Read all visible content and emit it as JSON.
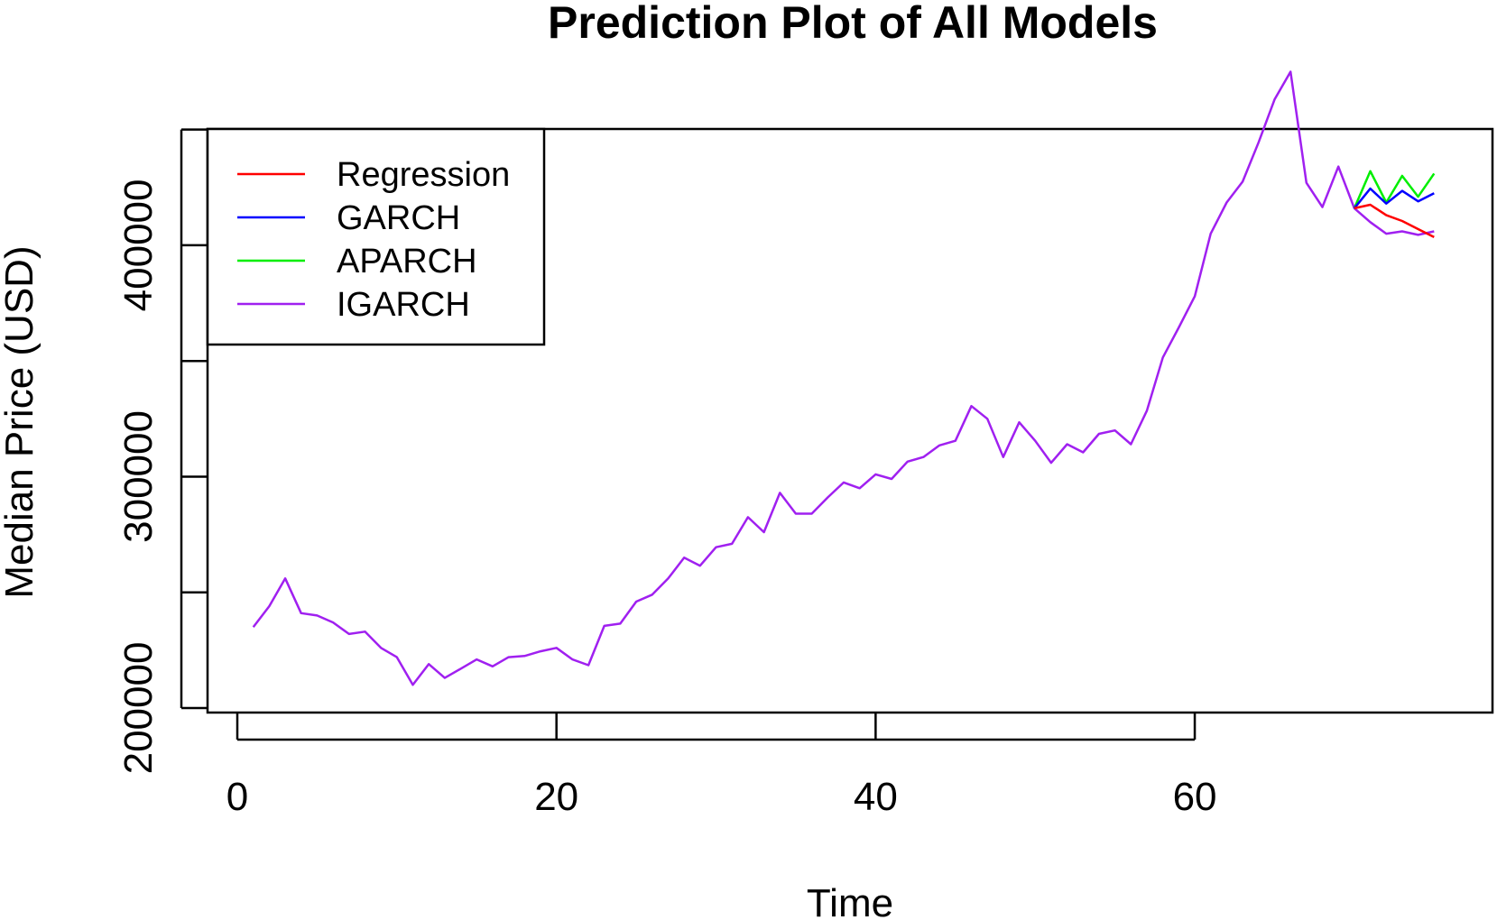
{
  "chart_data": {
    "type": "line",
    "title": "Prediction Plot of All Models",
    "xlabel": "Time",
    "ylabel": "Median Price (USD)",
    "xlim": [
      0,
      76
    ],
    "ylim": [
      200000,
      460000
    ],
    "x_ticks": [
      0,
      20,
      40,
      60
    ],
    "y_ticks": [
      200000,
      250000,
      300000,
      350000,
      400000,
      450000
    ],
    "y_tick_labels": [
      "200000",
      "",
      "300000",
      "",
      "400000",
      ""
    ],
    "legend_position": "top-left",
    "grid": false,
    "series": [
      {
        "name": "Regression",
        "color": "#ff0000",
        "x": [
          70,
          71,
          72,
          73,
          74,
          75
        ],
        "y": [
          416000,
          417500,
          413000,
          410500,
          407000,
          403500
        ]
      },
      {
        "name": "GARCH",
        "color": "#0000ff",
        "x": [
          70,
          71,
          72,
          73,
          74,
          75
        ],
        "y": [
          416000,
          424500,
          418000,
          423500,
          419000,
          422500
        ]
      },
      {
        "name": "APARCH",
        "color": "#00ee00",
        "x": [
          70,
          71,
          72,
          73,
          74,
          75
        ],
        "y": [
          416000,
          432000,
          418500,
          430000,
          421000,
          431000
        ]
      },
      {
        "name": "IGARCH",
        "color": "#a020f0",
        "x": [
          1,
          2,
          3,
          4,
          5,
          6,
          7,
          8,
          9,
          10,
          11,
          12,
          13,
          14,
          15,
          16,
          17,
          18,
          19,
          20,
          21,
          22,
          23,
          24,
          25,
          26,
          27,
          28,
          29,
          30,
          31,
          32,
          33,
          34,
          35,
          36,
          37,
          38,
          39,
          40,
          41,
          42,
          43,
          44,
          45,
          46,
          47,
          48,
          49,
          50,
          51,
          52,
          53,
          54,
          55,
          56,
          57,
          58,
          59,
          60,
          61,
          62,
          63,
          64,
          65,
          66,
          67,
          68,
          69,
          70,
          71,
          72,
          73,
          74,
          75
        ],
        "y": [
          235000,
          244000,
          256000,
          241000,
          240000,
          237000,
          232000,
          233000,
          226000,
          222000,
          210000,
          219000,
          213000,
          217000,
          221000,
          218000,
          222000,
          222500,
          224500,
          226000,
          221000,
          218500,
          235500,
          236500,
          246000,
          249000,
          256000,
          265000,
          261500,
          269500,
          271000,
          282500,
          276000,
          293000,
          284000,
          284000,
          291000,
          297500,
          295000,
          301000,
          299000,
          306500,
          308500,
          313500,
          315500,
          330500,
          325000,
          308500,
          323500,
          315500,
          306000,
          314000,
          310500,
          318500,
          320000,
          314000,
          328500,
          351500,
          364500,
          378000,
          405000,
          418500,
          427500,
          444500,
          463000,
          475000,
          427000,
          416500,
          434000,
          416000,
          410000,
          405000,
          406000,
          404500,
          406000
        ]
      }
    ]
  }
}
